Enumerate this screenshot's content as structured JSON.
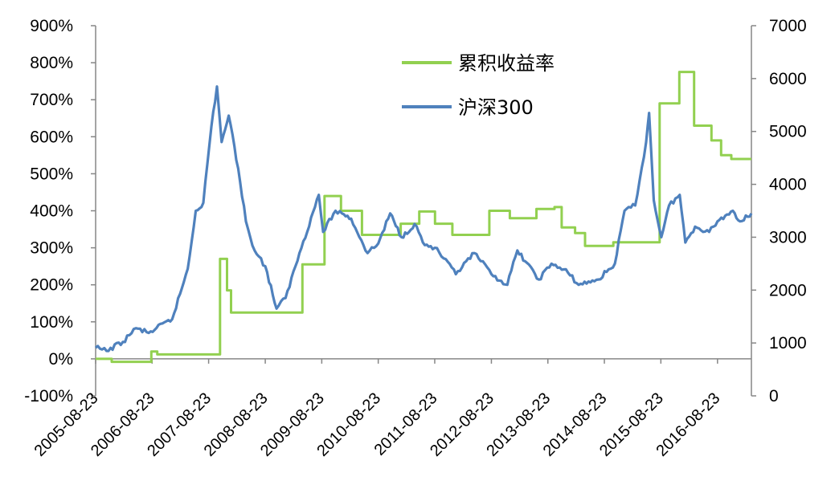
{
  "chart_data": {
    "type": "line",
    "title": "",
    "xlabel": "",
    "ylabel": "",
    "x_ticks": [
      "2005-08-23",
      "2006-08-23",
      "2007-08-23",
      "2008-08-23",
      "2009-08-23",
      "2010-08-23",
      "2011-08-23",
      "2012-08-23",
      "2013-08-23",
      "2014-08-23",
      "2015-08-23",
      "2016-08-23"
    ],
    "y_left": {
      "min": -100,
      "max": 900,
      "step": 100,
      "unit": "%",
      "ticks": [
        "-100%",
        "0%",
        "100%",
        "200%",
        "300%",
        "400%",
        "500%",
        "600%",
        "700%",
        "800%",
        "900%"
      ]
    },
    "y_right": {
      "min": 0,
      "max": 7000,
      "step": 1000,
      "ticks": [
        "0",
        "1000",
        "2000",
        "3000",
        "4000",
        "5000",
        "6000",
        "7000"
      ]
    },
    "grid": false,
    "legend_position": "top-center",
    "series": [
      {
        "name": "累积收益率",
        "axis": "left",
        "color": "#92D050",
        "step": true,
        "points": [
          [
            "2005-08-23",
            0
          ],
          [
            "2005-12-05",
            -8
          ],
          [
            "2006-08-18",
            20
          ],
          [
            "2006-09-25",
            12
          ],
          [
            "2007-11-05",
            270
          ],
          [
            "2007-12-20",
            185
          ],
          [
            "2008-01-15",
            125
          ],
          [
            "2009-04-20",
            255
          ],
          [
            "2009-09-10",
            440
          ],
          [
            "2009-12-25",
            400
          ],
          [
            "2010-05-10",
            335
          ],
          [
            "2010-12-01",
            335
          ],
          [
            "2011-01-15",
            365
          ],
          [
            "2011-05-15",
            398
          ],
          [
            "2011-08-25",
            365
          ],
          [
            "2011-12-15",
            335
          ],
          [
            "2012-08-10",
            400
          ],
          [
            "2012-12-20",
            380
          ],
          [
            "2013-06-10",
            405
          ],
          [
            "2013-10-05",
            410
          ],
          [
            "2013-11-20",
            355
          ],
          [
            "2014-02-15",
            340
          ],
          [
            "2014-04-20",
            305
          ],
          [
            "2014-10-20",
            315
          ],
          [
            "2015-08-15",
            690
          ],
          [
            "2015-12-20",
            775
          ],
          [
            "2016-03-25",
            630
          ],
          [
            "2016-07-15",
            590
          ],
          [
            "2016-09-15",
            550
          ],
          [
            "2016-11-20",
            540
          ],
          [
            "2017-03-30",
            540
          ]
        ]
      },
      {
        "name": "沪深300",
        "axis": "right",
        "color": "#4F81BD",
        "step": false,
        "points": [
          [
            "2005-08-23",
            910
          ],
          [
            "2005-11-01",
            850
          ],
          [
            "2006-02-15",
            1020
          ],
          [
            "2006-05-10",
            1280
          ],
          [
            "2006-08-01",
            1190
          ],
          [
            "2006-12-31",
            1450
          ],
          [
            "2007-04-10",
            2400
          ],
          [
            "2007-06-01",
            3500
          ],
          [
            "2007-07-20",
            3650
          ],
          [
            "2007-09-10",
            5100
          ],
          [
            "2007-10-16",
            5850
          ],
          [
            "2007-11-15",
            4800
          ],
          [
            "2007-12-31",
            5300
          ],
          [
            "2008-03-01",
            4300
          ],
          [
            "2008-04-20",
            3300
          ],
          [
            "2008-06-15",
            2750
          ],
          [
            "2008-08-23",
            2450
          ],
          [
            "2008-11-04",
            1650
          ],
          [
            "2009-01-01",
            1850
          ],
          [
            "2009-04-01",
            2700
          ],
          [
            "2009-08-04",
            3800
          ],
          [
            "2009-09-01",
            3100
          ],
          [
            "2009-11-20",
            3500
          ],
          [
            "2010-01-01",
            3450
          ],
          [
            "2010-03-01",
            3350
          ],
          [
            "2010-06-15",
            2700
          ],
          [
            "2010-08-23",
            2880
          ],
          [
            "2010-11-08",
            3450
          ],
          [
            "2011-01-20",
            3000
          ],
          [
            "2011-04-15",
            3250
          ],
          [
            "2011-06-20",
            2850
          ],
          [
            "2011-08-23",
            2800
          ],
          [
            "2011-10-20",
            2600
          ],
          [
            "2012-01-06",
            2300
          ],
          [
            "2012-05-05",
            2700
          ],
          [
            "2012-08-23",
            2300
          ],
          [
            "2012-12-04",
            2100
          ],
          [
            "2013-02-07",
            2750
          ],
          [
            "2013-06-25",
            2200
          ],
          [
            "2013-09-15",
            2500
          ],
          [
            "2013-12-31",
            2330
          ],
          [
            "2014-03-10",
            2100
          ],
          [
            "2014-07-15",
            2200
          ],
          [
            "2014-10-30",
            2500
          ],
          [
            "2014-12-31",
            3500
          ],
          [
            "2015-03-10",
            3600
          ],
          [
            "2015-05-20",
            4800
          ],
          [
            "2015-06-08",
            5350
          ],
          [
            "2015-07-08",
            3700
          ],
          [
            "2015-08-26",
            3000
          ],
          [
            "2015-10-15",
            3600
          ],
          [
            "2015-12-23",
            3800
          ],
          [
            "2016-01-28",
            2900
          ],
          [
            "2016-03-31",
            3200
          ],
          [
            "2016-06-30",
            3100
          ],
          [
            "2016-08-23",
            3300
          ],
          [
            "2016-11-30",
            3500
          ],
          [
            "2017-01-16",
            3300
          ],
          [
            "2017-03-30",
            3450
          ]
        ]
      }
    ]
  }
}
